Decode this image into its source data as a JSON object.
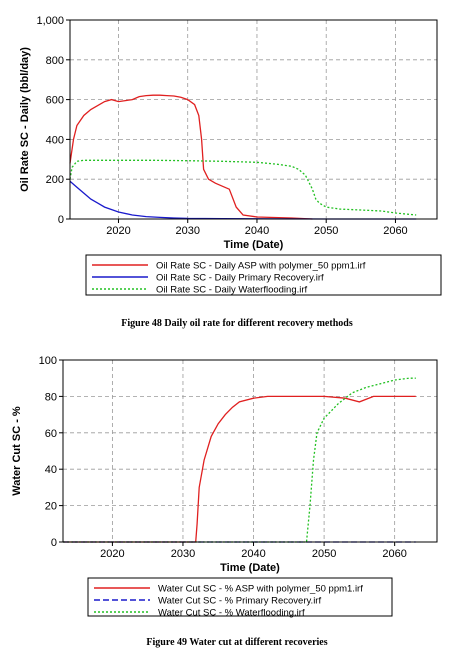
{
  "figures": [
    {
      "caption": "Figure 48 Daily oil rate for different recovery methods",
      "chart_data": {
        "type": "line",
        "xlabel": "Time (Date)",
        "ylabel": "Oil Rate SC - Daily (bbl/day)",
        "xlim": [
          2013,
          2066
        ],
        "ylim": [
          0,
          1000
        ],
        "xticks": [
          2020,
          2030,
          2040,
          2050,
          2060
        ],
        "yticks": [
          0,
          200,
          400,
          600,
          800,
          1000
        ],
        "ytick_labels": [
          "0",
          "200",
          "400",
          "600",
          "800",
          "1,000"
        ],
        "grid": true,
        "legend_position": "bottom",
        "series": [
          {
            "name": "Oil Rate SC - Daily ASP with polymer_50 ppm1.irf",
            "color": "#e02020",
            "dash": "solid",
            "x": [
              2013,
              2013.5,
              2014,
              2015,
              2016,
              2017,
              2018,
              2019,
              2020,
              2021,
              2022,
              2023,
              2024,
              2025,
              2026,
              2027,
              2028,
              2029,
              2030,
              2031,
              2031.6,
              2032,
              2032.3,
              2033,
              2034,
              2035,
              2036,
              2037,
              2038,
              2040,
              2045,
              2048
            ],
            "y": [
              280,
              400,
              470,
              520,
              550,
              570,
              590,
              600,
              590,
              595,
              600,
              615,
              620,
              622,
              622,
              620,
              618,
              612,
              600,
              575,
              520,
              400,
              250,
              200,
              180,
              165,
              150,
              60,
              20,
              10,
              5,
              0
            ]
          },
          {
            "name": "Oil Rate SC - Daily Primary Recovery.irf",
            "color": "#1a1acc",
            "dash": "solid",
            "x": [
              2013,
              2014,
              2015,
              2016,
              2017,
              2018,
              2020,
              2022,
              2024,
              2026,
              2028,
              2030,
              2035,
              2040,
              2050,
              2063
            ],
            "y": [
              190,
              160,
              130,
              100,
              80,
              60,
              35,
              20,
              12,
              8,
              5,
              3,
              2,
              1,
              0,
              0
            ]
          },
          {
            "name": "Oil Rate SC - Daily Waterflooding.irf",
            "color": "#22c022",
            "dash": "dotted",
            "x": [
              2013,
              2013.3,
              2014,
              2015,
              2016,
              2020,
              2025,
              2030,
              2035,
              2040,
              2043,
              2045,
              2046,
              2047,
              2048,
              2048.5,
              2049,
              2050,
              2052,
              2055,
              2058,
              2060,
              2063
            ],
            "y": [
              200,
              260,
              290,
              295,
              295,
              295,
              295,
              293,
              290,
              285,
              275,
              265,
              250,
              220,
              150,
              100,
              80,
              60,
              50,
              45,
              40,
              30,
              20
            ]
          }
        ]
      }
    },
    {
      "caption": "Figure 49 Water cut at different recoveries",
      "chart_data": {
        "type": "line",
        "xlabel": "Time (Date)",
        "ylabel": "Water Cut SC - %",
        "xlim": [
          2013,
          2066
        ],
        "ylim": [
          0,
          100
        ],
        "xticks": [
          2020,
          2030,
          2040,
          2050,
          2060
        ],
        "yticks": [
          0,
          20,
          40,
          60,
          80,
          100
        ],
        "ytick_labels": [
          "0",
          "20",
          "40",
          "60",
          "80",
          "100"
        ],
        "grid": true,
        "legend_position": "bottom",
        "series": [
          {
            "name": "Water Cut SC - % ASP with polymer_50 ppm1.irf",
            "color": "#e02020",
            "dash": "solid",
            "x": [
              2013,
              2031.8,
              2032,
              2032.3,
              2033,
              2034,
              2035,
              2036,
              2037,
              2038,
              2040,
              2042,
              2045,
              2050,
              2053,
              2055,
              2057,
              2060,
              2063
            ],
            "y": [
              0,
              0,
              10,
              30,
              45,
              58,
              65,
              70,
              74,
              77,
              79,
              80,
              80,
              80,
              79,
              77,
              80,
              80,
              80
            ]
          },
          {
            "name": "Water Cut SC - % Primary Recovery.irf",
            "color": "#1a1acc",
            "dash": "dashed",
            "x": [
              2013,
              2063
            ],
            "y": [
              0,
              0
            ]
          },
          {
            "name": "Water Cut SC - % Waterflooding.irf",
            "color": "#22c022",
            "dash": "dotted",
            "x": [
              2013,
              2047.5,
              2048,
              2048.5,
              2049,
              2050,
              2051,
              2052,
              2053,
              2054,
              2056,
              2058,
              2060,
              2062,
              2063
            ],
            "y": [
              0,
              0,
              20,
              45,
              60,
              68,
              72,
              76,
              79,
              82,
              85,
              87,
              89,
              90,
              90
            ]
          }
        ]
      }
    }
  ]
}
